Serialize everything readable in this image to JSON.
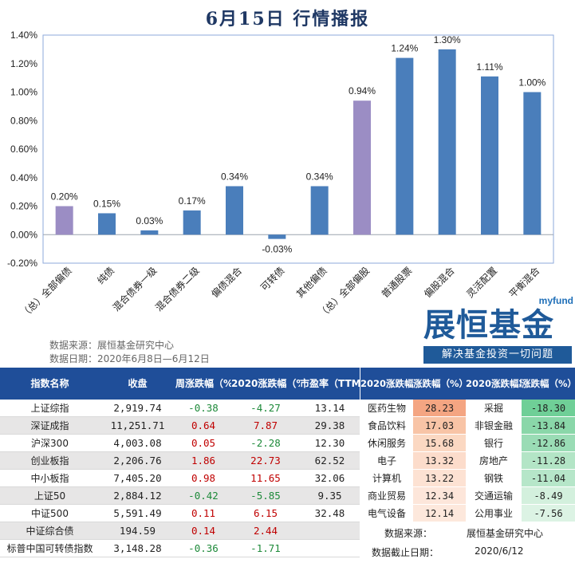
{
  "page": {
    "title": "6月15日  行情播报",
    "source_label": "数据来源：展恒基金研究中心",
    "date_label": "数据日期：2020年6月8日—6月12日"
  },
  "logo": {
    "brand": "myfund",
    "name": "展恒基金",
    "slogan": "解决基金投资一切问题"
  },
  "chart_data": {
    "type": "bar",
    "categories": [
      "（总）全部偏债",
      "纯债",
      "混合债券一级",
      "混合债券二级",
      "偏债混合",
      "可转债",
      "其他偏债",
      "（总）全部偏股",
      "普通股票",
      "偏股混合",
      "灵活配置",
      "平衡混合"
    ],
    "values": [
      0.2,
      0.15,
      0.03,
      0.17,
      0.34,
      -0.03,
      0.34,
      0.94,
      1.24,
      1.3,
      1.11,
      1.0
    ],
    "value_labels": [
      "0.20%",
      "0.15%",
      "0.03%",
      "0.17%",
      "0.34%",
      "-0.03%",
      "0.34%",
      "0.94%",
      "1.24%",
      "1.30%",
      "1.11%",
      "1.00%"
    ],
    "highlight": [
      true,
      false,
      false,
      false,
      false,
      false,
      false,
      true,
      false,
      false,
      false,
      false
    ],
    "yticks": [
      "1.40%",
      "1.20%",
      "1.00%",
      "0.80%",
      "0.60%",
      "0.40%",
      "0.20%",
      "0.00%",
      "-0.20%"
    ],
    "ylim": [
      -0.2,
      1.4
    ],
    "grid": false,
    "colors": {
      "bar": "#4a7ebb",
      "highlight": "#9b8dc4",
      "plot_border": "#8eaadb"
    },
    "title": "",
    "xlabel": "",
    "ylabel": ""
  },
  "index_table": {
    "headers": [
      "指数名称",
      "收盘",
      "周涨跌幅（%）",
      "2020涨跌幅（%）",
      "市盈率（TTM）"
    ],
    "rows": [
      {
        "name": "上证综指",
        "close": "2,919.74",
        "week": "-0.38",
        "ytd": "-4.27",
        "pe": "13.14"
      },
      {
        "name": "深证成指",
        "close": "11,251.71",
        "week": "0.64",
        "ytd": "7.87",
        "pe": "29.38"
      },
      {
        "name": "沪深300",
        "close": "4,003.08",
        "week": "0.05",
        "ytd": "-2.28",
        "pe": "12.30"
      },
      {
        "name": "创业板指",
        "close": "2,206.76",
        "week": "1.86",
        "ytd": "22.73",
        "pe": "62.52"
      },
      {
        "name": "中小板指",
        "close": "7,405.20",
        "week": "0.98",
        "ytd": "11.65",
        "pe": "32.06"
      },
      {
        "name": "上证50",
        "close": "2,884.12",
        "week": "-0.42",
        "ytd": "-5.85",
        "pe": "9.35"
      },
      {
        "name": "中证500",
        "close": "5,591.49",
        "week": "0.11",
        "ytd": "6.15",
        "pe": "32.48"
      },
      {
        "name": "中证综合债",
        "close": "194.59",
        "week": "0.14",
        "ytd": "2.44",
        "pe": ""
      },
      {
        "name": "标普中国可转债指数",
        "close": "3,148.28",
        "week": "-0.36",
        "ytd": "-1.71",
        "pe": ""
      }
    ]
  },
  "industry_table": {
    "headers": [
      "2020涨跌幅靠前行业",
      "涨跌幅（%）",
      "2020涨跌幅靠后行业",
      "涨跌幅（%）"
    ],
    "rows": [
      {
        "top": "医药生物",
        "top_val": "28.23",
        "bottom": "采掘",
        "bottom_val": "-18.30"
      },
      {
        "top": "食品饮料",
        "top_val": "17.03",
        "bottom": "非银金融",
        "bottom_val": "-13.84"
      },
      {
        "top": "休闲服务",
        "top_val": "15.68",
        "bottom": "银行",
        "bottom_val": "-12.86"
      },
      {
        "top": "电子",
        "top_val": "13.32",
        "bottom": "房地产",
        "bottom_val": "-11.28"
      },
      {
        "top": "计算机",
        "top_val": "13.22",
        "bottom": "钢铁",
        "bottom_val": "-11.04"
      },
      {
        "top": "商业贸易",
        "top_val": "12.34",
        "bottom": "交通运输",
        "bottom_val": "-8.49"
      },
      {
        "top": "电气设备",
        "top_val": "12.14",
        "bottom": "公用事业",
        "bottom_val": "-7.56"
      }
    ],
    "top_colors": [
      "#f4a582",
      "#f8c4a6",
      "#fbd8c2",
      "#fcdccb",
      "#fde2d3",
      "#fde6da",
      "#fde8dc"
    ],
    "bottom_colors": [
      "#6fcf97",
      "#8ad7a9",
      "#9adcb5",
      "#b3e5c6",
      "#b6e6c9",
      "#d3f0dd",
      "#dcf3e4"
    ],
    "footer_source_label": "数据来源：",
    "footer_source_value": "展恒基金研究中心",
    "footer_date_label": "数据截止日期：",
    "footer_date_value": "2020/6/12"
  }
}
